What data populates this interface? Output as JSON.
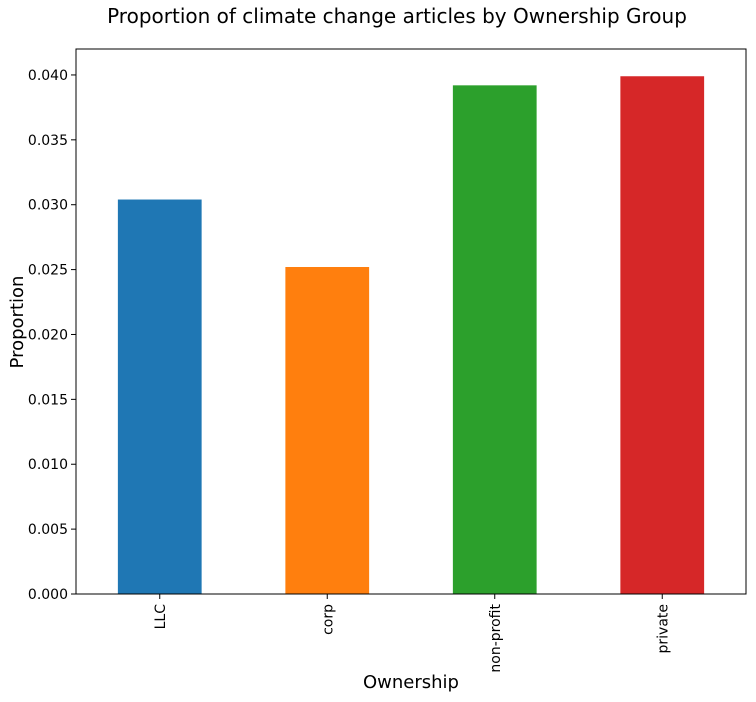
{
  "chart_data": {
    "type": "bar",
    "title": "Proportion of climate change articles by Ownership Group",
    "xlabel": "Ownership",
    "ylabel": "Proportion",
    "categories": [
      "LLC",
      "corp",
      "non-profit",
      "private"
    ],
    "values": [
      0.0304,
      0.0252,
      0.0392,
      0.0399
    ],
    "colors": [
      "#1f77b4",
      "#ff7f0e",
      "#2ca02c",
      "#d62728"
    ],
    "ylim": [
      0,
      0.042
    ],
    "yticks": [
      "0.000",
      "0.005",
      "0.010",
      "0.015",
      "0.020",
      "0.025",
      "0.030",
      "0.035",
      "0.040"
    ],
    "grid": false,
    "legend": "none"
  }
}
